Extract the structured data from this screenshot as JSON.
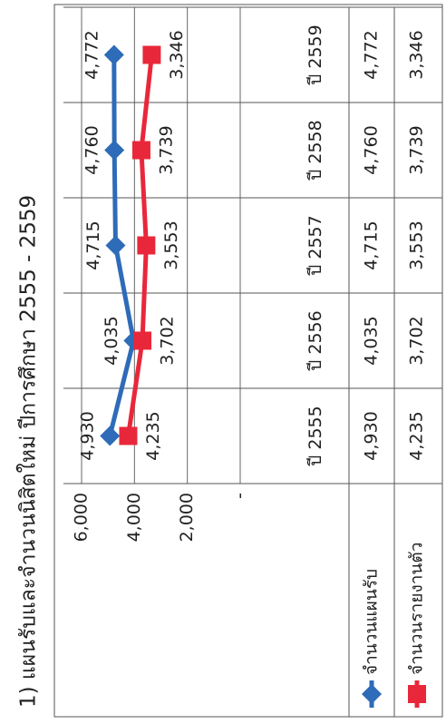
{
  "chart_data": {
    "type": "line",
    "title": "1) แผนรับและจำนวนนิสิตใหม่ ปีการศึกษา 2555 - 2559",
    "categories": [
      "ปี 2555",
      "ปี 2556",
      "ปี 2557",
      "ปี 2558",
      "ปี 2559"
    ],
    "series": [
      {
        "name": "จำนวนแผนรับ",
        "color": "#2e6bb8",
        "marker": "diamond",
        "values": [
          4930,
          4035,
          4715,
          4760,
          4772
        ],
        "value_labels": [
          "4,930",
          "4,035",
          "4,715",
          "4,760",
          "4,772"
        ]
      },
      {
        "name": "จำนวนรายงานตัว",
        "color": "#e8283a",
        "marker": "square",
        "values": [
          4235,
          3702,
          3553,
          3739,
          3346
        ],
        "value_labels": [
          "4,235",
          "3,702",
          "3,553",
          "3,739",
          "3,346"
        ]
      }
    ],
    "ylim": [
      0,
      6000
    ],
    "yticks": [
      {
        "value": 0,
        "label": "-"
      },
      {
        "value": 2000,
        "label": "2,000"
      },
      {
        "value": 4000,
        "label": "4,000"
      },
      {
        "value": 6000,
        "label": "6,000"
      }
    ],
    "grid": true
  }
}
